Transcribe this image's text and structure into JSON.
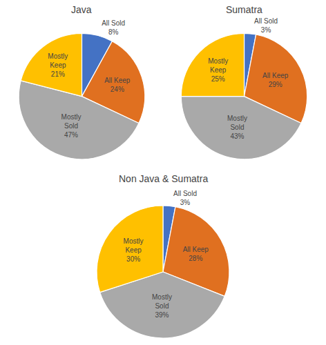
{
  "chart_data": [
    {
      "type": "pie",
      "title": "Java",
      "categories": [
        "All Sold",
        "All Keep",
        "Mostly\nSold",
        "Mostly\nKeep"
      ],
      "values": [
        8,
        24,
        47,
        21
      ],
      "value_labels": [
        "8%",
        "24%",
        "47%",
        "21%"
      ],
      "colors": [
        "#4472C4",
        "#E07020",
        "#A9A9A9",
        "#FFC000"
      ],
      "data_labels": true
    },
    {
      "type": "pie",
      "title": "Sumatra",
      "categories": [
        "All Sold",
        "All Keep",
        "Mostly\nSold",
        "Mostly\nKeep"
      ],
      "values": [
        3,
        29,
        43,
        25
      ],
      "value_labels": [
        "3%",
        "29%",
        "43%",
        "25%"
      ],
      "colors": [
        "#4472C4",
        "#E07020",
        "#A9A9A9",
        "#FFC000"
      ],
      "data_labels": true
    },
    {
      "type": "pie",
      "title": "Non Java & Sumatra",
      "categories": [
        "All Sold",
        "All Keep",
        "Mostly\nSold",
        "Mostly\nKeep"
      ],
      "values": [
        3,
        28,
        39,
        30
      ],
      "value_labels": [
        "3%",
        "28%",
        "39%",
        "30%"
      ],
      "colors": [
        "#4472C4",
        "#E07020",
        "#A9A9A9",
        "#FFC000"
      ],
      "data_labels": true
    }
  ]
}
